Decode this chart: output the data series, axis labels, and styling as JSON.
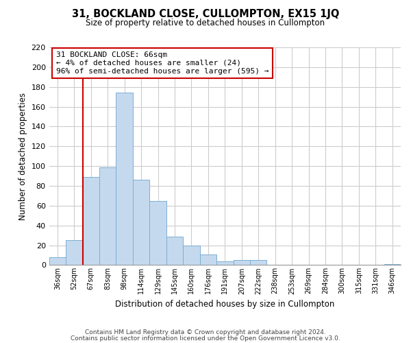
{
  "title": "31, BOCKLAND CLOSE, CULLOMPTON, EX15 1JQ",
  "subtitle": "Size of property relative to detached houses in Cullompton",
  "xlabel": "Distribution of detached houses by size in Cullompton",
  "ylabel": "Number of detached properties",
  "bar_color": "#c5d9ee",
  "edge_color": "#7bafd4",
  "vline_color": "#cc0000",
  "categories": [
    "36sqm",
    "52sqm",
    "67sqm",
    "83sqm",
    "98sqm",
    "114sqm",
    "129sqm",
    "145sqm",
    "160sqm",
    "176sqm",
    "191sqm",
    "207sqm",
    "222sqm",
    "238sqm",
    "253sqm",
    "269sqm",
    "284sqm",
    "300sqm",
    "315sqm",
    "331sqm",
    "346sqm"
  ],
  "values": [
    8,
    25,
    89,
    99,
    174,
    86,
    65,
    29,
    20,
    11,
    4,
    5,
    5,
    0,
    0,
    0,
    0,
    0,
    0,
    0,
    1
  ],
  "ylim": [
    0,
    220
  ],
  "yticks": [
    0,
    20,
    40,
    60,
    80,
    100,
    120,
    140,
    160,
    180,
    200,
    220
  ],
  "annotation_title": "31 BOCKLAND CLOSE: 66sqm",
  "annotation_line1": "← 4% of detached houses are smaller (24)",
  "annotation_line2": "96% of semi-detached houses are larger (595) →",
  "footer1": "Contains HM Land Registry data © Crown copyright and database right 2024.",
  "footer2": "Contains public sector information licensed under the Open Government Licence v3.0.",
  "background_color": "#ffffff",
  "grid_color": "#cccccc"
}
